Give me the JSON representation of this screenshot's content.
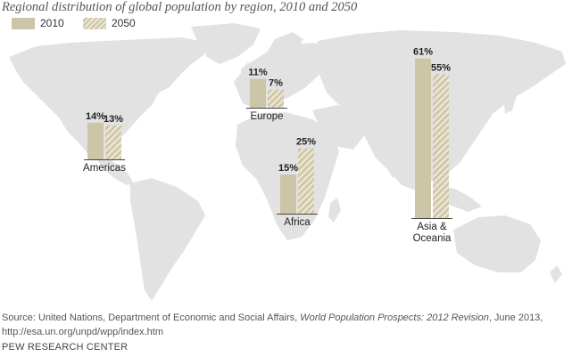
{
  "subtitle": "Regional distribution of global population by region, 2010 and 2050",
  "legend": [
    {
      "label": "2010",
      "color": "#cdc5a8",
      "pattern": "solid"
    },
    {
      "label": "2050",
      "color": "#d8d0b3",
      "pattern": "striped"
    }
  ],
  "colors": {
    "map": "#e2e2e2",
    "bar2010": "#cdc5a8",
    "bar2050_light": "#ece6d2",
    "bar2050_dark": "#cdc5a8",
    "baseline": "#444444"
  },
  "chart_data": {
    "type": "bar",
    "series": [
      {
        "name": "2010",
        "values": [
          14,
          11,
          15,
          61
        ]
      },
      {
        "name": "2050",
        "values": [
          13,
          7,
          25,
          55
        ]
      }
    ],
    "categories": [
      "Americas",
      "Europe",
      "Africa",
      "Asia & Oceania"
    ],
    "value_labels": [
      [
        "14%",
        "13%"
      ],
      [
        "11%",
        "7%"
      ],
      [
        "15%",
        "25%"
      ],
      [
        "61%",
        "55%"
      ]
    ],
    "category_label_lines": [
      [
        "Americas"
      ],
      [
        "Europe"
      ],
      [
        "Africa"
      ],
      [
        "Asia &",
        "Oceania"
      ]
    ],
    "unit": "%"
  },
  "source": {
    "prefix": "Source: United Nations, Department of Economic and Social Affairs, ",
    "italic": "World Population Prospects: 2012 Revision",
    "suffix": ", June 2013, http://esa.un.org/unpd/wpp/index.htm"
  },
  "footer": "PEW RESEARCH CENTER"
}
